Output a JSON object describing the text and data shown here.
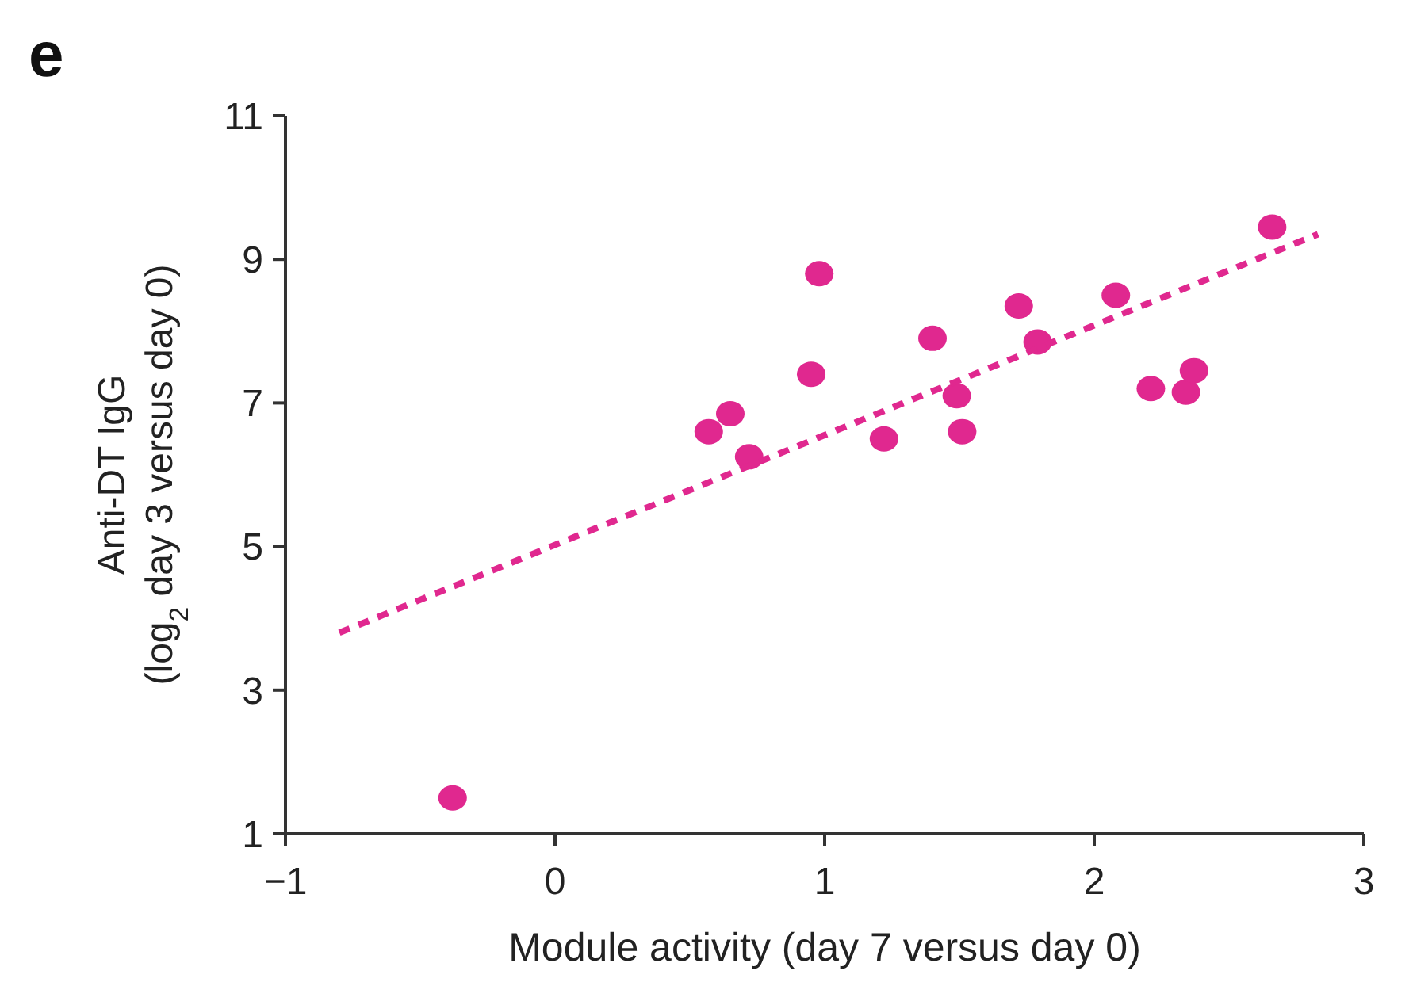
{
  "chart_data": {
    "type": "scatter",
    "xlabel": "Module activity (day 7 versus day 0)",
    "ylabel": "Anti-DT IgG\n(log$_{2}$ day 3 versus day 0)",
    "annotations": [
      "e"
    ],
    "xlim": [
      -1,
      3
    ],
    "xticks": [
      {
        "value": -1,
        "label": "−1"
      },
      0,
      1,
      2,
      3
    ],
    "ylim": [
      1,
      11
    ],
    "yticks": [
      1,
      3,
      5,
      7,
      9,
      11
    ],
    "grid": false,
    "marker": "circle",
    "series": [
      {
        "color": "#e0288f",
        "x": [
          -0.38,
          0.57,
          0.65,
          0.72,
          0.95,
          0.98,
          1.22,
          1.4,
          1.49,
          1.51,
          1.72,
          1.79,
          2.08,
          2.21,
          2.34,
          2.37,
          2.66
        ],
        "values": [
          1.5,
          6.6,
          6.85,
          6.25,
          7.4,
          8.8,
          6.5,
          7.9,
          7.1,
          6.6,
          8.35,
          7.85,
          8.5,
          7.2,
          7.15,
          7.45,
          9.45
        ]
      },
      {
        "type": "line",
        "color": "#e0288f",
        "line_style": "dashed",
        "marker": "none",
        "x": [
          -0.8,
          2.83
        ],
        "values": [
          3.8,
          9.35
        ]
      }
    ]
  }
}
